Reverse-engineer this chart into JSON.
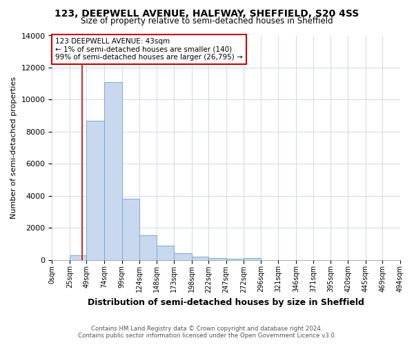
{
  "title1": "123, DEEPWELL AVENUE, HALFWAY, SHEFFIELD, S20 4SS",
  "title2": "Size of property relative to semi-detached houses in Sheffield",
  "xlabel": "Distribution of semi-detached houses by size in Sheffield",
  "ylabel": "Number of semi-detached properties",
  "footer1": "Contains HM Land Registry data © Crown copyright and database right 2024.",
  "footer2": "Contains public sector information licensed under the Open Government Licence v3.0.",
  "annotation_line1": "123 DEEPWELL AVENUE: 43sqm",
  "annotation_line2": "← 1% of semi-detached houses are smaller (140)",
  "annotation_line3": "99% of semi-detached houses are larger (26,795) →",
  "property_size": 43,
  "bar_edges": [
    0,
    25,
    49,
    74,
    99,
    124,
    148,
    173,
    198,
    222,
    247,
    272,
    296,
    321,
    346,
    371,
    395,
    420,
    445,
    469,
    494
  ],
  "bar_values": [
    0,
    300,
    8700,
    11100,
    3800,
    1550,
    900,
    400,
    200,
    130,
    70,
    120,
    0,
    0,
    0,
    0,
    0,
    0,
    0,
    0
  ],
  "bar_color": "#c8d8ee",
  "bar_edge_color": "#7aaad0",
  "red_line_color": "#cc0000",
  "annotation_box_color": "#cc0000",
  "grid_color": "#c8d4e8",
  "background_color": "#ffffff",
  "plot_bg_color": "#ffffff",
  "ylim": [
    0,
    14000
  ],
  "yticks": [
    0,
    2000,
    4000,
    6000,
    8000,
    10000,
    12000,
    14000
  ]
}
